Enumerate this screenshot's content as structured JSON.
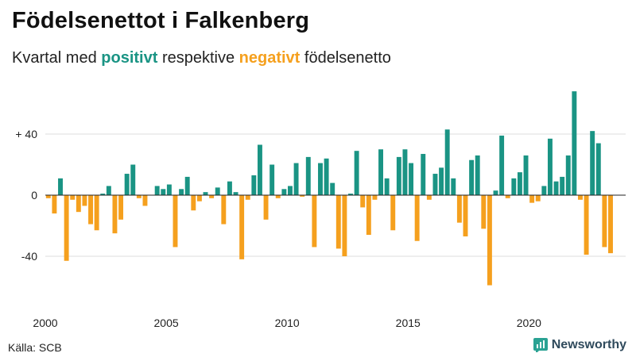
{
  "title": "Födelsenettot i Falkenberg",
  "subtitle": {
    "prefix": "Kvartal med ",
    "positive": "positivt",
    "middle": " respektive ",
    "negative": "negativt",
    "suffix": " födelsenetto"
  },
  "source": "Källa: SCB",
  "brand": "Newsworthy",
  "colors": {
    "positive": "#1a9484",
    "negative": "#f5a01e",
    "grid": "#dddddd",
    "zero": "#222222"
  },
  "chart_data": {
    "type": "bar",
    "title": "Födelsenettot i Falkenberg",
    "xlabel": "",
    "ylabel": "",
    "ylim": [
      -65,
      72
    ],
    "x_start_year": 2000,
    "x_tick_labels": [
      "2000",
      "2005",
      "2010",
      "2015",
      "2020"
    ],
    "y_ticks": [
      40,
      0,
      -40
    ],
    "y_tick_labels": [
      "+ 40",
      "0",
      "-40"
    ],
    "categories": [
      "2000K1",
      "2000K2",
      "2000K3",
      "2000K4",
      "2001K1",
      "2001K2",
      "2001K3",
      "2001K4",
      "2002K1",
      "2002K2",
      "2002K3",
      "2002K4",
      "2003K1",
      "2003K2",
      "2003K3",
      "2003K4",
      "2004K1",
      "2004K2",
      "2004K3",
      "2004K4",
      "2005K1",
      "2005K2",
      "2005K3",
      "2005K4",
      "2006K1",
      "2006K2",
      "2006K3",
      "2006K4",
      "2007K1",
      "2007K2",
      "2007K3",
      "2007K4",
      "2008K1",
      "2008K2",
      "2008K3",
      "2008K4",
      "2009K1",
      "2009K2",
      "2009K3",
      "2009K4",
      "2010K1",
      "2010K2",
      "2010K3",
      "2010K4",
      "2011K1",
      "2011K2",
      "2011K3",
      "2011K4",
      "2012K1",
      "2012K2",
      "2012K3",
      "2012K4",
      "2013K1",
      "2013K2",
      "2013K3",
      "2013K4",
      "2014K1",
      "2014K2",
      "2014K3",
      "2014K4",
      "2015K1",
      "2015K2",
      "2015K3",
      "2015K4",
      "2016K1",
      "2016K2",
      "2016K3",
      "2016K4",
      "2017K1",
      "2017K2",
      "2017K3",
      "2017K4",
      "2018K1",
      "2018K2",
      "2018K3",
      "2018K4",
      "2019K1",
      "2019K2",
      "2019K3",
      "2019K4",
      "2020K1",
      "2020K2",
      "2020K3",
      "2020K4",
      "2021K1",
      "2021K2",
      "2021K3",
      "2021K4",
      "2022K1",
      "2022K2",
      "2022K3",
      "2022K4",
      "2023K1",
      "2023K2",
      "2023K3",
      "2023K4"
    ],
    "values": [
      -2,
      -12,
      11,
      -43,
      -3,
      -11,
      -7,
      -19,
      -23,
      1,
      6,
      -25,
      -16,
      14,
      20,
      -2,
      -7,
      0,
      6,
      4,
      7,
      -34,
      4,
      12,
      -10,
      -4,
      2,
      -2,
      5,
      -19,
      9,
      2,
      -42,
      -3,
      13,
      33,
      -16,
      20,
      -2,
      4,
      6,
      21,
      -1,
      25,
      -34,
      21,
      24,
      8,
      -35,
      -40,
      1,
      29,
      -8,
      -26,
      -3,
      30,
      11,
      -23,
      25,
      30,
      21,
      -30,
      27,
      -3,
      14,
      18,
      43,
      11,
      -18,
      -27,
      23,
      26,
      -22,
      -59,
      3,
      39,
      -2,
      11,
      15,
      26,
      -5,
      -4,
      6,
      37,
      9,
      12,
      26,
      68,
      -3,
      -39,
      42,
      34,
      -34,
      -38,
      0,
      0
    ]
  }
}
